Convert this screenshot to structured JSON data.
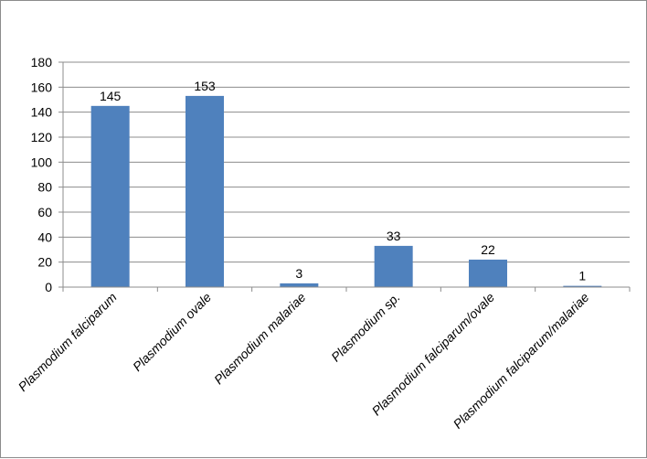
{
  "chart_data": {
    "type": "bar",
    "title": "",
    "xlabel": "",
    "ylabel": "",
    "ylim": [
      0,
      180
    ],
    "yticks": [
      0,
      20,
      40,
      60,
      80,
      100,
      120,
      140,
      160,
      180
    ],
    "grid": true,
    "legend": false,
    "categories": [
      "Plasmodium falciparum",
      "Plasmodium ovale",
      "Plasmodium malariae",
      "Plasmodium sp.",
      "Plasmodium falciparum/ovale",
      "Plasmodium falciparum/malariae"
    ],
    "values": [
      145,
      153,
      3,
      33,
      22,
      1
    ],
    "bar_color": "#4f81bd",
    "grid_color": "#8c8c8c"
  }
}
